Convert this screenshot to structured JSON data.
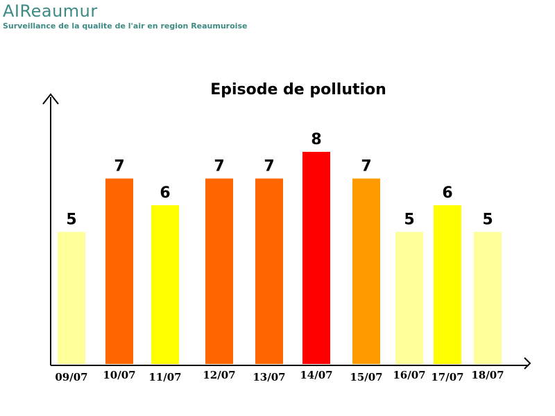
{
  "header": {
    "brand": "AIReaumur",
    "subtitle": "Surveillance de la qualite de l'air en region Reaumuroise"
  },
  "chart_data": {
    "type": "bar",
    "title": "Episode de pollution",
    "xlabel": "",
    "ylabel": "",
    "ylim": [
      0,
      10
    ],
    "grid": false,
    "categories": [
      "09/07",
      "10/07",
      "11/07",
      "12/07",
      "13/07",
      "14/07",
      "15/07",
      "16/07",
      "17/07",
      "18/07"
    ],
    "values": [
      5,
      7,
      6,
      7,
      7,
      8,
      7,
      5,
      6,
      5
    ],
    "colors": [
      "#ffff99",
      "#ff6600",
      "#ffff00",
      "#ff6600",
      "#ff6600",
      "#ff0000",
      "#ff9900",
      "#ffff99",
      "#ffff00",
      "#ffff99"
    ]
  }
}
